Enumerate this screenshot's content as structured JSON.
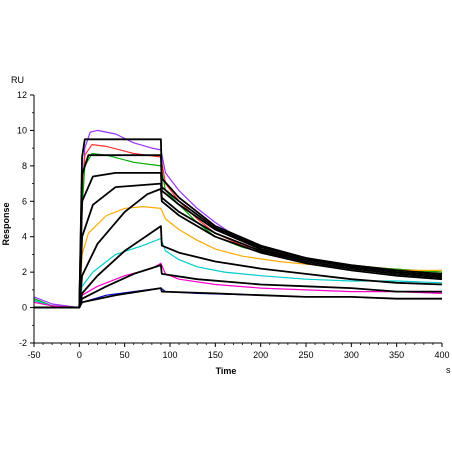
{
  "chart_data": {
    "type": "line",
    "title": "",
    "xlabel": "Time",
    "ylabel": "Response",
    "x_unit": "s",
    "y_unit": "RU",
    "xlim": [
      -50,
      400
    ],
    "ylim": [
      -2,
      12
    ],
    "x_ticks": [
      -50,
      0,
      50,
      100,
      150,
      200,
      250,
      300,
      350,
      400
    ],
    "y_ticks": [
      -2,
      0,
      2,
      4,
      6,
      8,
      10,
      12
    ],
    "x_tick_labels": [
      "-50",
      "0",
      "50",
      "100",
      "150",
      "200",
      "250",
      "300",
      "350",
      "400"
    ],
    "y_tick_labels": [
      "-2",
      "0",
      "2",
      "4",
      "6",
      "8",
      "10",
      "12"
    ],
    "grid": false,
    "legend": "none",
    "series": [
      {
        "color": "#9933FF",
        "points": [
          [
            -50,
            0.6
          ],
          [
            -30,
            0.2
          ],
          [
            0,
            0.0
          ],
          [
            3,
            6.0
          ],
          [
            6,
            9.0
          ],
          [
            12,
            9.9
          ],
          [
            20,
            10.0
          ],
          [
            40,
            9.8
          ],
          [
            60,
            9.3
          ],
          [
            80,
            9.0
          ],
          [
            90,
            8.9
          ],
          [
            95,
            7.6
          ],
          [
            110,
            6.6
          ],
          [
            130,
            5.6
          ],
          [
            150,
            4.8
          ],
          [
            170,
            4.1
          ],
          [
            200,
            3.4
          ],
          [
            250,
            2.8
          ],
          [
            300,
            2.3
          ],
          [
            350,
            2.0
          ],
          [
            400,
            1.8
          ]
        ]
      },
      {
        "color": "#FF3333",
        "points": [
          [
            -50,
            0.4
          ],
          [
            -30,
            0.1
          ],
          [
            0,
            0.0
          ],
          [
            3,
            5.8
          ],
          [
            6,
            8.6
          ],
          [
            14,
            9.2
          ],
          [
            30,
            9.1
          ],
          [
            60,
            8.7
          ],
          [
            90,
            8.5
          ],
          [
            95,
            7.0
          ],
          [
            110,
            6.0
          ],
          [
            130,
            5.0
          ],
          [
            150,
            4.2
          ],
          [
            180,
            3.5
          ],
          [
            220,
            3.0
          ],
          [
            280,
            2.5
          ],
          [
            340,
            2.2
          ],
          [
            400,
            2.0
          ]
        ]
      },
      {
        "color": "#00AA00",
        "points": [
          [
            -50,
            0.5
          ],
          [
            -30,
            0.1
          ],
          [
            0,
            0.0
          ],
          [
            3,
            5.5
          ],
          [
            6,
            8.0
          ],
          [
            14,
            8.7
          ],
          [
            30,
            8.6
          ],
          [
            60,
            8.2
          ],
          [
            90,
            8.0
          ],
          [
            95,
            6.6
          ],
          [
            110,
            5.8
          ],
          [
            130,
            4.8
          ],
          [
            150,
            4.0
          ],
          [
            180,
            3.4
          ],
          [
            220,
            2.9
          ],
          [
            280,
            2.5
          ],
          [
            340,
            2.2
          ],
          [
            400,
            2.0
          ]
        ]
      },
      {
        "color": "#FFAA00",
        "points": [
          [
            -50,
            0.3
          ],
          [
            -30,
            0.1
          ],
          [
            0,
            0.0
          ],
          [
            3,
            3.0
          ],
          [
            10,
            4.2
          ],
          [
            30,
            5.2
          ],
          [
            50,
            5.6
          ],
          [
            70,
            5.7
          ],
          [
            90,
            5.6
          ],
          [
            95,
            5.0
          ],
          [
            110,
            4.4
          ],
          [
            130,
            3.8
          ],
          [
            150,
            3.3
          ],
          [
            180,
            2.9
          ],
          [
            220,
            2.6
          ],
          [
            280,
            2.3
          ],
          [
            340,
            2.1
          ],
          [
            400,
            2.1
          ]
        ]
      },
      {
        "color": "#00CCCC",
        "points": [
          [
            -50,
            0.4
          ],
          [
            -30,
            0.1
          ],
          [
            0,
            0.0
          ],
          [
            3,
            1.2
          ],
          [
            15,
            2.0
          ],
          [
            40,
            3.0
          ],
          [
            70,
            3.5
          ],
          [
            90,
            3.9
          ],
          [
            95,
            3.2
          ],
          [
            110,
            2.7
          ],
          [
            130,
            2.3
          ],
          [
            160,
            2.0
          ],
          [
            200,
            1.8
          ],
          [
            250,
            1.6
          ],
          [
            300,
            1.5
          ],
          [
            350,
            1.5
          ],
          [
            400,
            1.4
          ]
        ]
      },
      {
        "color": "#FF00CC",
        "points": [
          [
            -50,
            0.3
          ],
          [
            -30,
            0.1
          ],
          [
            0,
            0.0
          ],
          [
            3,
            0.7
          ],
          [
            20,
            1.2
          ],
          [
            50,
            1.8
          ],
          [
            80,
            2.2
          ],
          [
            90,
            2.5
          ],
          [
            95,
            1.9
          ],
          [
            110,
            1.6
          ],
          [
            150,
            1.3
          ],
          [
            200,
            1.1
          ],
          [
            250,
            1.0
          ],
          [
            300,
            0.9
          ],
          [
            350,
            0.9
          ],
          [
            400,
            0.8
          ]
        ]
      },
      {
        "color": "#0000CC",
        "points": [
          [
            -50,
            0.0
          ],
          [
            -20,
            0.0
          ],
          [
            0,
            0.0
          ],
          [
            3,
            0.3
          ],
          [
            30,
            0.7
          ],
          [
            60,
            0.9
          ],
          [
            90,
            1.1
          ],
          [
            95,
            0.9
          ],
          [
            130,
            0.8
          ],
          [
            200,
            0.7
          ],
          [
            250,
            0.6
          ],
          [
            300,
            0.6
          ],
          [
            350,
            0.5
          ],
          [
            400,
            0.5
          ]
        ]
      },
      {
        "color": "#000000",
        "points": [
          [
            -50,
            0.0
          ],
          [
            0,
            0.0
          ],
          [
            3,
            8.5
          ],
          [
            6,
            9.5
          ],
          [
            90,
            9.5
          ],
          [
            91,
            7.3
          ],
          [
            110,
            6.2
          ],
          [
            150,
            4.6
          ],
          [
            200,
            3.5
          ],
          [
            250,
            2.8
          ],
          [
            300,
            2.4
          ],
          [
            350,
            2.1
          ],
          [
            400,
            1.9
          ]
        ]
      },
      {
        "color": "#000000",
        "points": [
          [
            -50,
            0.0
          ],
          [
            0,
            0.0
          ],
          [
            3,
            7.5
          ],
          [
            10,
            8.6
          ],
          [
            90,
            8.6
          ],
          [
            91,
            6.8
          ],
          [
            110,
            6.0
          ],
          [
            150,
            4.5
          ],
          [
            200,
            3.4
          ],
          [
            250,
            2.8
          ],
          [
            300,
            2.3
          ],
          [
            350,
            2.0
          ],
          [
            400,
            1.8
          ]
        ]
      },
      {
        "color": "#000000",
        "points": [
          [
            -50,
            0.0
          ],
          [
            0,
            0.0
          ],
          [
            3,
            6.0
          ],
          [
            15,
            7.4
          ],
          [
            40,
            7.6
          ],
          [
            90,
            7.6
          ],
          [
            91,
            6.6
          ],
          [
            110,
            5.8
          ],
          [
            150,
            4.4
          ],
          [
            200,
            3.3
          ],
          [
            250,
            2.7
          ],
          [
            300,
            2.3
          ],
          [
            350,
            2.0
          ],
          [
            400,
            1.8
          ]
        ]
      },
      {
        "color": "#000000",
        "points": [
          [
            -50,
            0.0
          ],
          [
            0,
            0.0
          ],
          [
            3,
            4.0
          ],
          [
            15,
            5.8
          ],
          [
            40,
            6.8
          ],
          [
            90,
            7.0
          ],
          [
            91,
            6.2
          ],
          [
            110,
            5.4
          ],
          [
            150,
            4.2
          ],
          [
            200,
            3.2
          ],
          [
            250,
            2.6
          ],
          [
            300,
            2.2
          ],
          [
            350,
            1.9
          ],
          [
            400,
            1.7
          ]
        ]
      },
      {
        "color": "#000000",
        "points": [
          [
            -50,
            0.0
          ],
          [
            0,
            0.0
          ],
          [
            3,
            1.8
          ],
          [
            20,
            3.6
          ],
          [
            50,
            5.4
          ],
          [
            75,
            6.4
          ],
          [
            90,
            6.7
          ],
          [
            91,
            6.0
          ],
          [
            110,
            5.2
          ],
          [
            150,
            4.0
          ],
          [
            200,
            3.1
          ],
          [
            250,
            2.5
          ],
          [
            300,
            2.1
          ],
          [
            350,
            1.8
          ],
          [
            400,
            1.6
          ]
        ]
      },
      {
        "color": "#000000",
        "points": [
          [
            -50,
            0.0
          ],
          [
            0,
            0.0
          ],
          [
            3,
            0.8
          ],
          [
            20,
            1.8
          ],
          [
            50,
            3.2
          ],
          [
            90,
            4.6
          ],
          [
            91,
            3.5
          ],
          [
            110,
            3.1
          ],
          [
            150,
            2.6
          ],
          [
            200,
            2.2
          ],
          [
            250,
            1.9
          ],
          [
            300,
            1.6
          ],
          [
            350,
            1.4
          ],
          [
            400,
            1.3
          ]
        ]
      },
      {
        "color": "#000000",
        "points": [
          [
            -50,
            0.0
          ],
          [
            0,
            0.0
          ],
          [
            3,
            0.5
          ],
          [
            30,
            1.2
          ],
          [
            60,
            1.9
          ],
          [
            90,
            2.4
          ],
          [
            91,
            1.9
          ],
          [
            130,
            1.6
          ],
          [
            200,
            1.3
          ],
          [
            250,
            1.2
          ],
          [
            300,
            1.1
          ],
          [
            350,
            0.9
          ],
          [
            400,
            0.9
          ]
        ]
      },
      {
        "color": "#000000",
        "points": [
          [
            -50,
            0.0
          ],
          [
            0,
            0.0
          ],
          [
            3,
            0.3
          ],
          [
            40,
            0.7
          ],
          [
            90,
            1.1
          ],
          [
            91,
            0.9
          ],
          [
            150,
            0.8
          ],
          [
            200,
            0.7
          ],
          [
            250,
            0.6
          ],
          [
            300,
            0.6
          ],
          [
            350,
            0.5
          ],
          [
            400,
            0.5
          ]
        ]
      }
    ]
  }
}
